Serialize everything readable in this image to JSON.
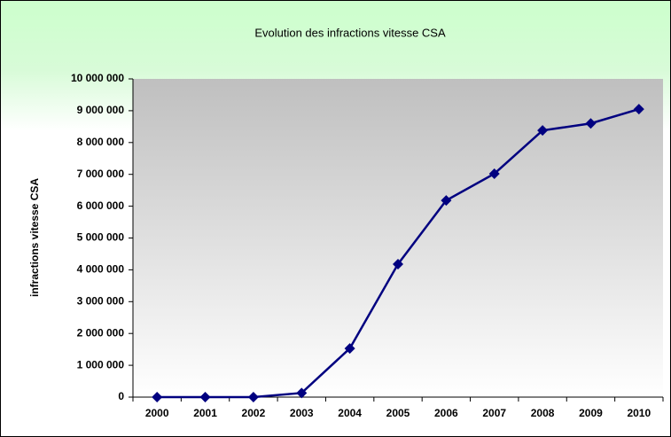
{
  "chart_data": {
    "type": "line",
    "title": "Evolution des infractions vitesse CSA",
    "y_label": "infractions vitesse CSA",
    "categories": [
      "2000",
      "2001",
      "2002",
      "2003",
      "2004",
      "2005",
      "2006",
      "2007",
      "2008",
      "2009",
      "2010"
    ],
    "series": [
      {
        "name": "infractions vitesse CSA",
        "color": "#000080",
        "values": [
          0,
          0,
          0,
          130000,
          1530000,
          4180000,
          6180000,
          7020000,
          8380000,
          8600000,
          9050000
        ]
      }
    ],
    "ylim": [
      0,
      10000000
    ],
    "yticks": [
      0,
      {
        "value": 1000000,
        "label": "1 000 000"
      },
      {
        "value": 2000000,
        "label": "2 000 000"
      },
      {
        "value": 3000000,
        "label": "3 000 000"
      },
      {
        "value": 4000000,
        "label": "4 000 000"
      },
      {
        "value": 5000000,
        "label": "5 000 000"
      },
      {
        "value": 6000000,
        "label": "6 000 000"
      },
      {
        "value": 7000000,
        "label": "7 000 000"
      },
      {
        "value": 8000000,
        "label": "8 000 000"
      },
      {
        "value": 9000000,
        "label": "9 000 000"
      },
      {
        "value": 10000000,
        "label": "10 000 000"
      }
    ],
    "grid": false
  }
}
